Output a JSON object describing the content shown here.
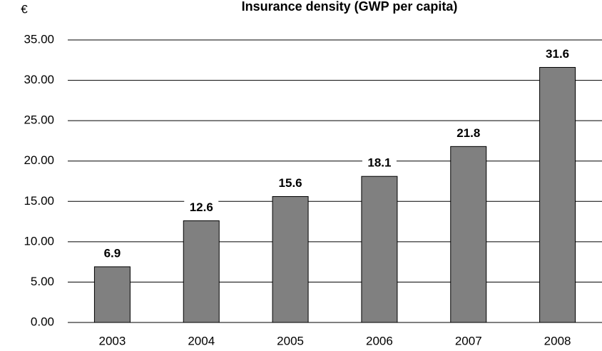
{
  "chart_data": {
    "type": "bar",
    "title": "Insurance density (GWP per capita)",
    "y_label": "€",
    "categories": [
      "2003",
      "2004",
      "2005",
      "2006",
      "2007",
      "2008"
    ],
    "values": [
      6.9,
      12.6,
      15.6,
      18.1,
      21.8,
      31.6
    ],
    "color": "#808080",
    "ylim": [
      0,
      35
    ],
    "yticks": [
      {
        "value": 0,
        "label": "0.00"
      },
      {
        "value": 5,
        "label": "5.00"
      },
      {
        "value": 10,
        "label": "10.00"
      },
      {
        "value": 15,
        "label": "15.00"
      },
      {
        "value": 20,
        "label": "20.00"
      },
      {
        "value": 25,
        "label": "25.00"
      },
      {
        "value": 30,
        "label": "30.00"
      },
      {
        "value": 35,
        "label": "35.00"
      }
    ],
    "grid": true
  }
}
